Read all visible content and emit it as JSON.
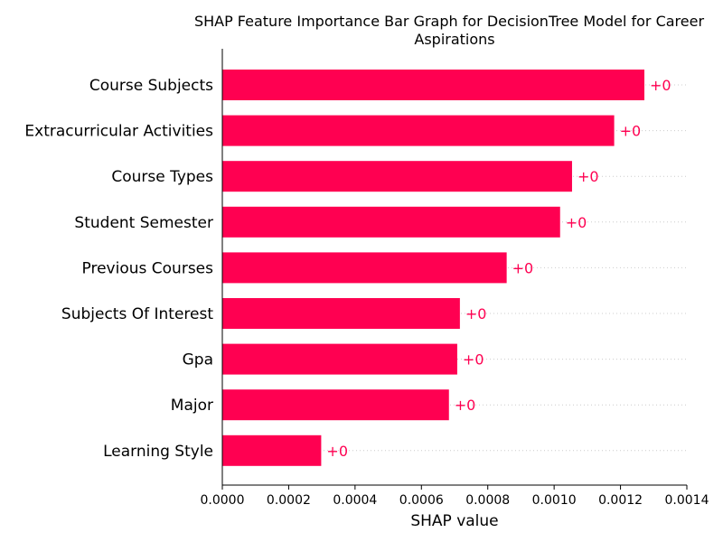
{
  "chart_data": {
    "type": "bar",
    "orientation": "horizontal",
    "title": "SHAP Feature Importance Bar Graph for DecisionTree Model for Career Aspirations",
    "title_lines": [
      "SHAP Feature Importance Bar Graph for DecisionTree Model for Career",
      "Aspirations"
    ],
    "xlabel": "SHAP value",
    "ylabel": "",
    "xlim": [
      0,
      0.0014
    ],
    "x_ticks": [
      "0.0000",
      "0.0002",
      "0.0004",
      "0.0006",
      "0.0008",
      "0.0010",
      "0.0012",
      "0.0014"
    ],
    "x_tick_values": [
      0,
      0.0002,
      0.0004,
      0.0006,
      0.0008,
      0.001,
      0.0012,
      0.0014
    ],
    "grid": "dotted horizontal guide lines behind bars",
    "bar_color": "#ff0051",
    "categories": [
      "Course Subjects",
      "Extracurricular Activities",
      "Course Types",
      "Student Semester",
      "Previous Courses",
      "Subjects Of Interest",
      "Gpa",
      "Major",
      "Learning Style"
    ],
    "values": [
      0.001272,
      0.001181,
      0.001054,
      0.001018,
      0.000857,
      0.000716,
      0.000708,
      0.000683,
      0.000298
    ],
    "value_labels": [
      "+0",
      "+0",
      "+0",
      "+0",
      "+0",
      "+0",
      "+0",
      "+0",
      "+0"
    ]
  }
}
